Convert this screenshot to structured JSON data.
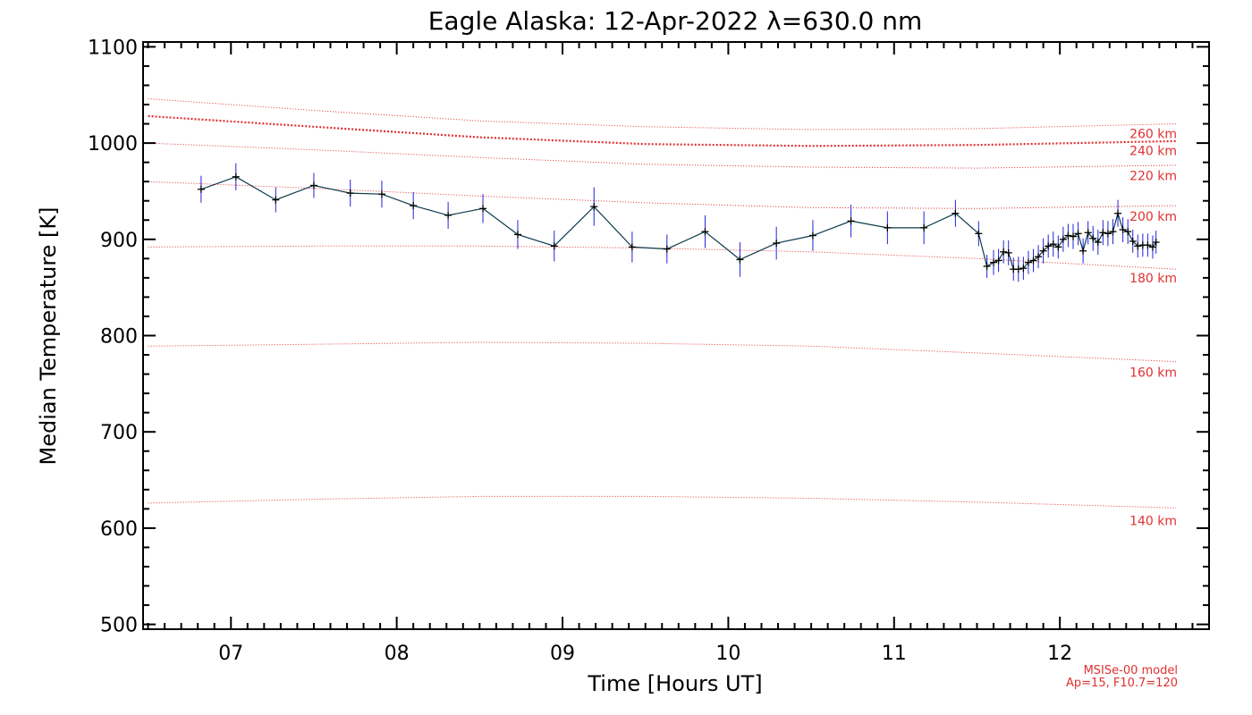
{
  "chart_data": {
    "type": "line",
    "title": "Eagle Alaska: 12-Apr-2022 λ=630.0 nm",
    "xlabel": "Time [Hours UT]",
    "ylabel": "Median Temperature [K]",
    "xlim": [
      6.47,
      12.9
    ],
    "ylim": [
      495,
      1105
    ],
    "xticks": [
      7,
      8,
      9,
      10,
      11,
      12
    ],
    "xtick_labels": [
      "07",
      "08",
      "09",
      "10",
      "11",
      "12"
    ],
    "yticks": [
      500,
      600,
      700,
      800,
      900,
      1000,
      1100
    ],
    "ytick_labels": [
      "500",
      "600",
      "700",
      "800",
      "900",
      "1000",
      "1100"
    ],
    "grid": false,
    "colors": {
      "data": "#000000",
      "line": "#0a3a4a",
      "errorbar": "#2222dd",
      "model": "#e03030"
    },
    "series": [
      {
        "x": [
          6.82,
          7.03,
          7.27,
          7.5,
          7.72,
          7.91,
          8.1,
          8.31,
          8.52,
          8.73,
          8.95,
          9.19,
          9.42,
          9.63,
          9.86,
          10.07,
          10.29,
          10.51,
          10.74,
          10.96,
          11.18,
          11.37,
          11.51,
          11.56,
          11.6,
          11.63,
          11.66,
          11.69,
          11.72,
          11.75,
          11.78,
          11.81,
          11.84,
          11.87,
          11.9,
          11.93,
          11.96,
          11.99,
          12.02,
          12.05,
          12.08,
          12.11,
          12.14,
          12.17,
          12.2,
          12.23,
          12.26,
          12.29,
          12.32,
          12.35,
          12.38,
          12.41,
          12.44,
          12.47,
          12.5,
          12.53,
          12.56,
          12.58
        ],
        "y": [
          952,
          965,
          941,
          956,
          948,
          947,
          935,
          925,
          932,
          905,
          893,
          934,
          892,
          890,
          908,
          879,
          896,
          904,
          919,
          912,
          912,
          927,
          906,
          872,
          876,
          878,
          887,
          886,
          869,
          869,
          870,
          876,
          878,
          882,
          888,
          893,
          895,
          892,
          900,
          904,
          903,
          906,
          888,
          907,
          901,
          897,
          907,
          906,
          908,
          927,
          910,
          908,
          898,
          893,
          894,
          894,
          892,
          897
        ],
        "err": [
          14,
          14,
          13,
          13,
          14,
          14,
          14,
          14,
          15,
          15,
          16,
          20,
          16,
          15,
          17,
          18,
          17,
          16,
          17,
          17,
          17,
          14,
          13,
          12,
          13,
          12,
          12,
          13,
          12,
          13,
          12,
          12,
          12,
          12,
          13,
          12,
          13,
          12,
          13,
          12,
          13,
          12,
          13,
          12,
          13,
          13,
          13,
          13,
          13,
          14,
          13,
          13,
          12,
          12,
          12,
          12,
          12,
          12
        ]
      }
    ],
    "model_curves": [
      {
        "label": "140 km",
        "x": [
          6.5,
          7.5,
          8.5,
          9.5,
          10.5,
          11.5,
          12.7
        ],
        "y": [
          626,
          630,
          633,
          633,
          631,
          627,
          621
        ],
        "bold": false
      },
      {
        "label": "160 km",
        "x": [
          6.5,
          7.5,
          8.5,
          9.5,
          10.5,
          11.5,
          12.7
        ],
        "y": [
          789,
          791,
          793,
          792,
          789,
          782,
          773
        ],
        "bold": false
      },
      {
        "label": "180 km",
        "x": [
          6.5,
          7.5,
          8.5,
          9.5,
          10.5,
          11.5,
          12.7
        ],
        "y": [
          892,
          893,
          893,
          891,
          887,
          880,
          869
        ],
        "bold": false
      },
      {
        "label": "200 km",
        "x": [
          6.5,
          7.5,
          8.5,
          9.5,
          10.5,
          11.5,
          12.7
        ],
        "y": [
          960,
          953,
          945,
          938,
          933,
          932,
          935
        ],
        "bold": false
      },
      {
        "label": "220 km",
        "x": [
          6.5,
          7.5,
          8.5,
          9.5,
          10.5,
          11.5,
          12.7
        ],
        "y": [
          1000,
          993,
          985,
          978,
          975,
          974,
          977
        ],
        "bold": false
      },
      {
        "label": "240 km",
        "x": [
          6.5,
          7.5,
          8.5,
          9.5,
          10.5,
          11.5,
          12.7
        ],
        "y": [
          1028,
          1017,
          1006,
          999,
          997,
          998,
          1002
        ],
        "bold": true
      },
      {
        "label": "260 km",
        "x": [
          6.5,
          7.5,
          8.5,
          9.5,
          10.5,
          11.5,
          12.7
        ],
        "y": [
          1046,
          1034,
          1023,
          1017,
          1014,
          1015,
          1020
        ],
        "bold": false
      }
    ],
    "alt_labels": [
      {
        "text": "260 km",
        "y": 1010
      },
      {
        "text": "240 km",
        "y": 992
      },
      {
        "text": "220 km",
        "y": 966
      },
      {
        "text": "200 km",
        "y": 924
      },
      {
        "text": "180 km",
        "y": 860
      },
      {
        "text": "160 km",
        "y": 762
      },
      {
        "text": "140 km",
        "y": 608
      }
    ],
    "model_note": [
      "MSISe-00 model",
      "Ap=15, F10.7=120"
    ]
  }
}
